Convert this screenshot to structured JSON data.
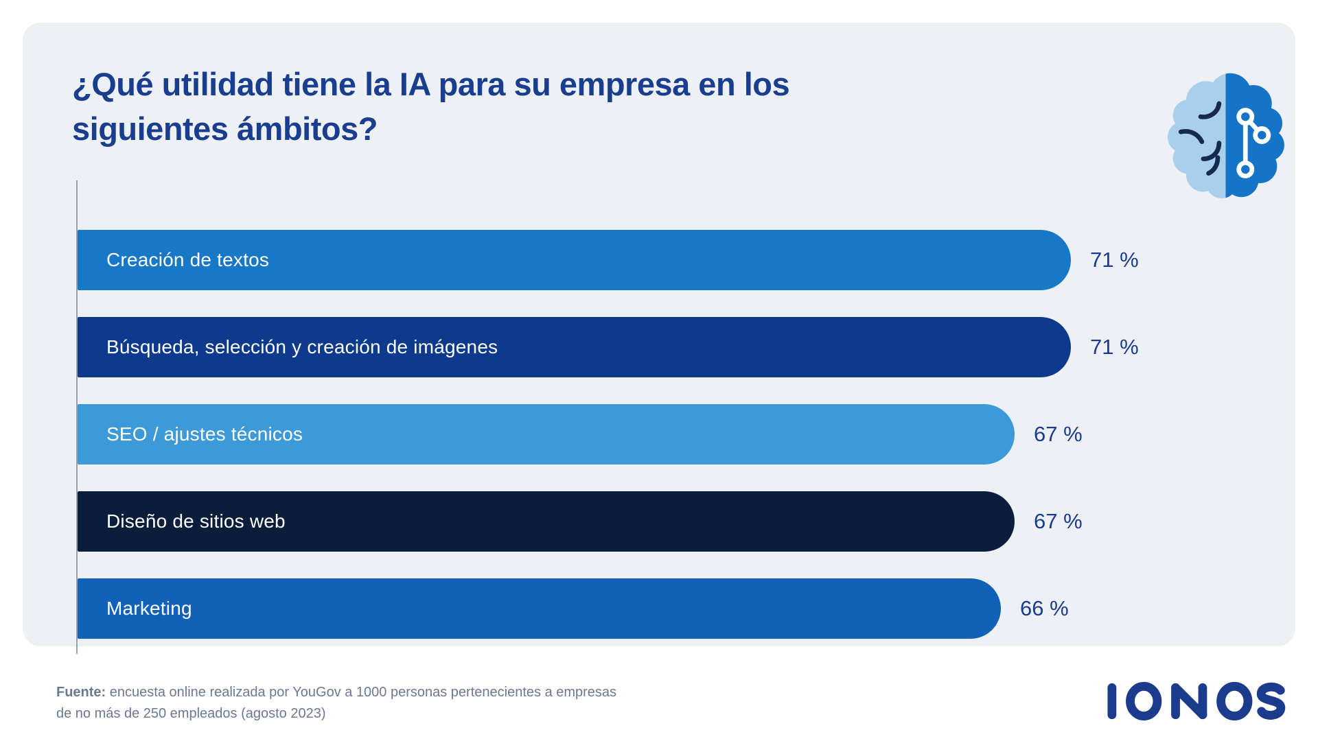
{
  "header": {
    "title": "¿Qué utilidad tiene la IA para su empresa en los siguientes ámbitos?"
  },
  "chart_data": {
    "type": "bar",
    "orientation": "horizontal",
    "title": "¿Qué utilidad tiene la IA para su empresa en los siguientes ámbitos?",
    "categories": [
      "Creación de textos",
      "Búsqueda, selección y creación de imágenes",
      "SEO / ajustes técnicos",
      "Diseño de sitios web",
      "Marketing"
    ],
    "values": [
      71,
      71,
      67,
      67,
      66
    ],
    "value_labels": [
      "71 %",
      "71 %",
      "67 %",
      "67 %",
      "66 %"
    ],
    "bar_colors": [
      "#1878c8",
      "#0d3a8c",
      "#3c9ad8",
      "#0a1e3c",
      "#1161b8"
    ],
    "xlim": [
      0,
      71
    ],
    "grid": false,
    "legend": false,
    "value_label_position": "right-of-bar"
  },
  "footer": {
    "source_label": "Fuente:",
    "source_line1": " encuesta online realizada por YouGov a 1000 personas pertenecientes a empresas",
    "source_line2": "de no más de 250 empleados (agosto 2023)"
  },
  "branding": {
    "logo": "IONOS"
  },
  "icons": {
    "brain_icon": "half-tone brain with circuit nodes"
  },
  "colors": {
    "page_bg": "#ffffff",
    "panel_bg": "#edf1f6",
    "title_text": "#1a3e8f",
    "percent_text": "#1a3c8c",
    "bar_label_text": "#ffffff",
    "axis_line": "#9aa1ab",
    "source_text": "#6b7990",
    "logo": "#1b3c8c",
    "brain_left": "#a9cfec",
    "brain_right": "#1474c8",
    "brain_lines": "#16294f"
  }
}
